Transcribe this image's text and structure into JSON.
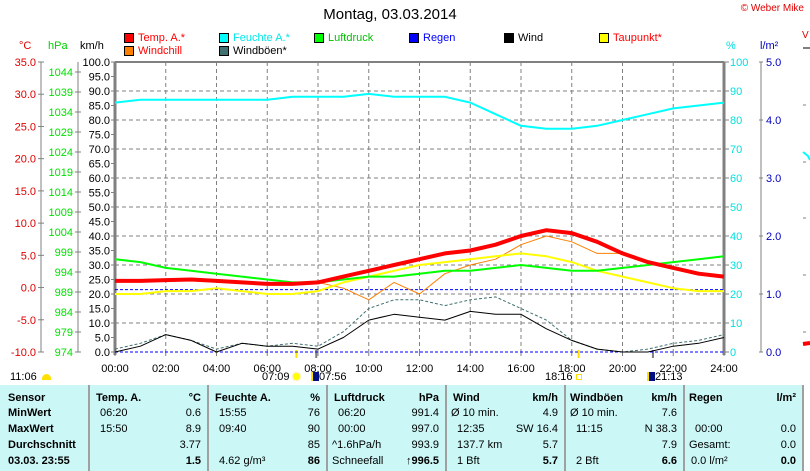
{
  "header": {
    "title": "Montag, 03.03.2014",
    "copyright": "© Weber Mike",
    "right_edge_label": "V"
  },
  "legend": [
    {
      "label": "Temp. A.*",
      "color": "#ff0000",
      "text_color": "#ff0000"
    },
    {
      "label": "Windchill",
      "color": "#ff8000",
      "text_color": "#ff0000"
    },
    {
      "label": "Feuchte A.*",
      "color": "#00ffff",
      "text_color": "#00e0e0"
    },
    {
      "label": "Windböen*",
      "color": "#407070",
      "text_color": "#000000"
    },
    {
      "label": "Luftdruck",
      "color": "#00ff00",
      "text_color": "#00c000"
    },
    {
      "label": "Regen",
      "color": "#0000ff",
      "text_color": "#0000ff"
    },
    {
      "label": "Wind",
      "color": "#000000",
      "text_color": "#000000"
    },
    {
      "label": "Taupunkt*",
      "color": "#ffff00",
      "text_color": "#ff0000"
    }
  ],
  "axes": {
    "temp": {
      "unit": "°C",
      "ticks": [
        "35.0",
        "30.0",
        "25.0",
        "20.0",
        "15.0",
        "10.0",
        "5.0",
        "0.0",
        "-5.0",
        "-10.0"
      ],
      "min": -10,
      "max": 35,
      "color": "#e00000"
    },
    "pressure": {
      "unit": "hPa",
      "ticks": [
        "1044",
        "1039",
        "1034",
        "1029",
        "1024",
        "1019",
        "1014",
        "1009",
        "1004",
        "999",
        "994",
        "989",
        "984",
        "979",
        "974"
      ],
      "color": "#00e000"
    },
    "wind": {
      "unit": "km/h",
      "ticks": [
        "100.0",
        "95.0",
        "90.0",
        "85.0",
        "80.0",
        "75.0",
        "70.0",
        "65.0",
        "60.0",
        "55.0",
        "50.0",
        "45.0",
        "40.0",
        "35.0",
        "30.0",
        "25.0",
        "20.0",
        "15.0",
        "10.0",
        "5.0",
        "0.0"
      ],
      "min": 0,
      "max": 100,
      "color": "#000000"
    },
    "humidity": {
      "unit": "%",
      "ticks": [
        "100",
        "90",
        "80",
        "70",
        "60",
        "50",
        "40",
        "30",
        "20",
        "10",
        "0"
      ],
      "min": 0,
      "max": 100,
      "color": "#00e0e0"
    },
    "rain": {
      "unit": "l/m²",
      "ticks": [
        "5.0",
        "4.0",
        "3.0",
        "2.0",
        "1.0",
        "0.0"
      ],
      "min": 0,
      "max": 5,
      "color": "#0000c0"
    }
  },
  "sun_moon": {
    "moonset": "11:06",
    "sunrise": "07:09",
    "moonrise": "07:56",
    "sunset": "18:16",
    "moon2": "21:13"
  },
  "chart_data": {
    "type": "line",
    "title": "Montag, 03.03.2014",
    "xlabel": "",
    "x_ticks": [
      "00:00",
      "02:00",
      "04:00",
      "06:00",
      "08:00",
      "10:00",
      "12:00",
      "14:00",
      "16:00",
      "18:00",
      "20:00",
      "22:00",
      "24:00"
    ],
    "x": [
      0,
      1,
      2,
      3,
      4,
      5,
      6,
      7,
      8,
      9,
      10,
      11,
      12,
      13,
      14,
      15,
      16,
      17,
      18,
      19,
      20,
      21,
      22,
      23,
      24
    ],
    "xlim": [
      0,
      24
    ],
    "grid": true,
    "series": [
      {
        "name": "Temp. A.*",
        "axis": "km/h scale",
        "color": "#ff0000",
        "width": 4,
        "values": [
          24.5,
          24.5,
          24.8,
          25,
          24.5,
          24,
          23.5,
          23.5,
          24,
          26,
          28,
          30,
          32,
          34,
          35,
          37,
          40,
          42,
          41,
          38,
          34,
          31,
          29,
          27,
          26
        ]
      },
      {
        "name": "Feuchte A.*",
        "axis": "%",
        "color": "#00ffff",
        "width": 2,
        "values": [
          86,
          87,
          87,
          87,
          87,
          87,
          87,
          88,
          88,
          88,
          89,
          88,
          88,
          88,
          86,
          82,
          78,
          77,
          77,
          78,
          80,
          82,
          84,
          85,
          86
        ]
      },
      {
        "name": "Luftdruck",
        "axis": "km/h scale",
        "color": "#00ff00",
        "width": 2,
        "values": [
          32,
          31,
          29,
          28,
          27,
          26,
          25,
          24,
          24,
          25,
          26,
          26,
          27,
          28,
          28,
          29,
          30,
          29,
          28,
          28,
          29,
          30,
          31,
          32,
          33
        ]
      },
      {
        "name": "Taupunkt*",
        "axis": "km/h scale",
        "color": "#ffff00",
        "width": 2,
        "values": [
          20,
          20,
          21,
          21,
          22,
          21,
          20,
          20,
          21,
          24,
          26,
          28,
          30,
          31,
          32,
          33,
          34,
          33,
          31,
          28,
          26,
          24,
          22,
          21,
          21
        ]
      },
      {
        "name": "Windchill",
        "axis": "km/h scale",
        "color": "#ff8000",
        "width": 1,
        "values": [
          24.5,
          24.5,
          24.8,
          25,
          24.5,
          24,
          23.5,
          23.5,
          24,
          22,
          18,
          24,
          20,
          27,
          30,
          32,
          37,
          40,
          38,
          34,
          34,
          31,
          29,
          27,
          26
        ]
      },
      {
        "name": "Windböen*",
        "axis": "km/h scale",
        "color": "#407070",
        "width": 1,
        "dashed": true,
        "values": [
          1,
          3,
          6,
          4,
          1,
          3,
          2,
          3,
          2,
          7,
          15,
          18,
          18,
          16,
          18,
          19,
          15,
          11,
          4,
          1,
          0,
          1,
          3,
          4,
          6
        ]
      },
      {
        "name": "Wind",
        "axis": "km/h scale",
        "color": "#000000",
        "width": 1,
        "values": [
          0,
          2,
          6,
          4,
          0,
          3,
          2,
          2,
          1,
          5,
          11,
          13,
          12,
          11,
          14,
          13,
          13,
          8,
          4,
          1,
          0,
          0,
          2,
          3,
          5
        ]
      },
      {
        "name": "Regen",
        "axis": "l/m²",
        "color": "#0000ff",
        "width": 1,
        "dashed": true,
        "values": [
          0,
          0,
          0,
          0,
          0,
          0,
          0,
          0,
          0,
          0,
          0,
          0,
          0,
          0,
          0,
          0,
          0,
          0,
          0,
          0,
          0,
          0,
          0,
          0,
          0
        ]
      },
      {
        "name": "Regen-ref",
        "axis": "km/h scale",
        "color": "#0000ff",
        "width": 1,
        "dashed": true,
        "values": [
          21.5,
          21.5,
          21.5,
          21.5,
          21.5,
          21.5,
          21.5,
          21.5,
          21.5,
          21.5,
          21.5,
          21.5,
          21.5,
          21.5,
          21.5,
          21.5,
          21.5,
          21.5,
          21.5,
          21.5,
          21.5,
          21.5,
          21.5,
          21.5,
          21.5
        ]
      }
    ]
  },
  "table": {
    "sensor": {
      "header": "Sensor",
      "rows": [
        "MinWert",
        "MaxWert",
        "Durchschnitt",
        "03.03. 23:55"
      ]
    },
    "temp": {
      "header": "Temp. A.",
      "unit": "°C",
      "rows": [
        [
          "06:20",
          "0.6"
        ],
        [
          "15:50",
          "8.9"
        ],
        [
          "",
          "3.77"
        ],
        [
          "",
          "1.5"
        ]
      ]
    },
    "humidity": {
      "header": "Feuchte A.",
      "unit": "%",
      "rows": [
        [
          "15:55",
          "76"
        ],
        [
          "09:40",
          "90"
        ],
        [
          "",
          "85"
        ],
        [
          "4.62 g/m³",
          "86"
        ]
      ]
    },
    "pressure": {
      "header": "Luftdruck",
      "unit": "hPa",
      "rows": [
        [
          "06:20",
          "991.4"
        ],
        [
          "00:00",
          "997.0"
        ],
        [
          "^1.6hPa/h",
          "993.9"
        ],
        [
          "Schneefall",
          "996.5"
        ]
      ],
      "trend_arrow": "↑"
    },
    "wind": {
      "header": "Wind",
      "unit": "km/h",
      "rows": [
        [
          "Ø 10 min.",
          "4.9"
        ],
        [
          "12:35",
          "SW 16.4"
        ],
        [
          "137.7 km",
          "5.7"
        ],
        [
          "1 Bft",
          "5.7"
        ]
      ]
    },
    "gusts": {
      "header": "Windböen",
      "unit": "km/h",
      "rows": [
        [
          "Ø 10 min.",
          "7.6"
        ],
        [
          "11:15",
          "N 38.3"
        ],
        [
          "",
          "7.9"
        ],
        [
          "2 Bft",
          "6.6"
        ]
      ]
    },
    "rain": {
      "header": "Regen",
      "unit": "l/m²",
      "rows": [
        [
          "",
          ""
        ],
        [
          "00:00",
          "0.0"
        ],
        [
          "Gesamt:",
          "0.0"
        ],
        [
          "0.0 l/m²",
          "0.0"
        ]
      ]
    }
  }
}
